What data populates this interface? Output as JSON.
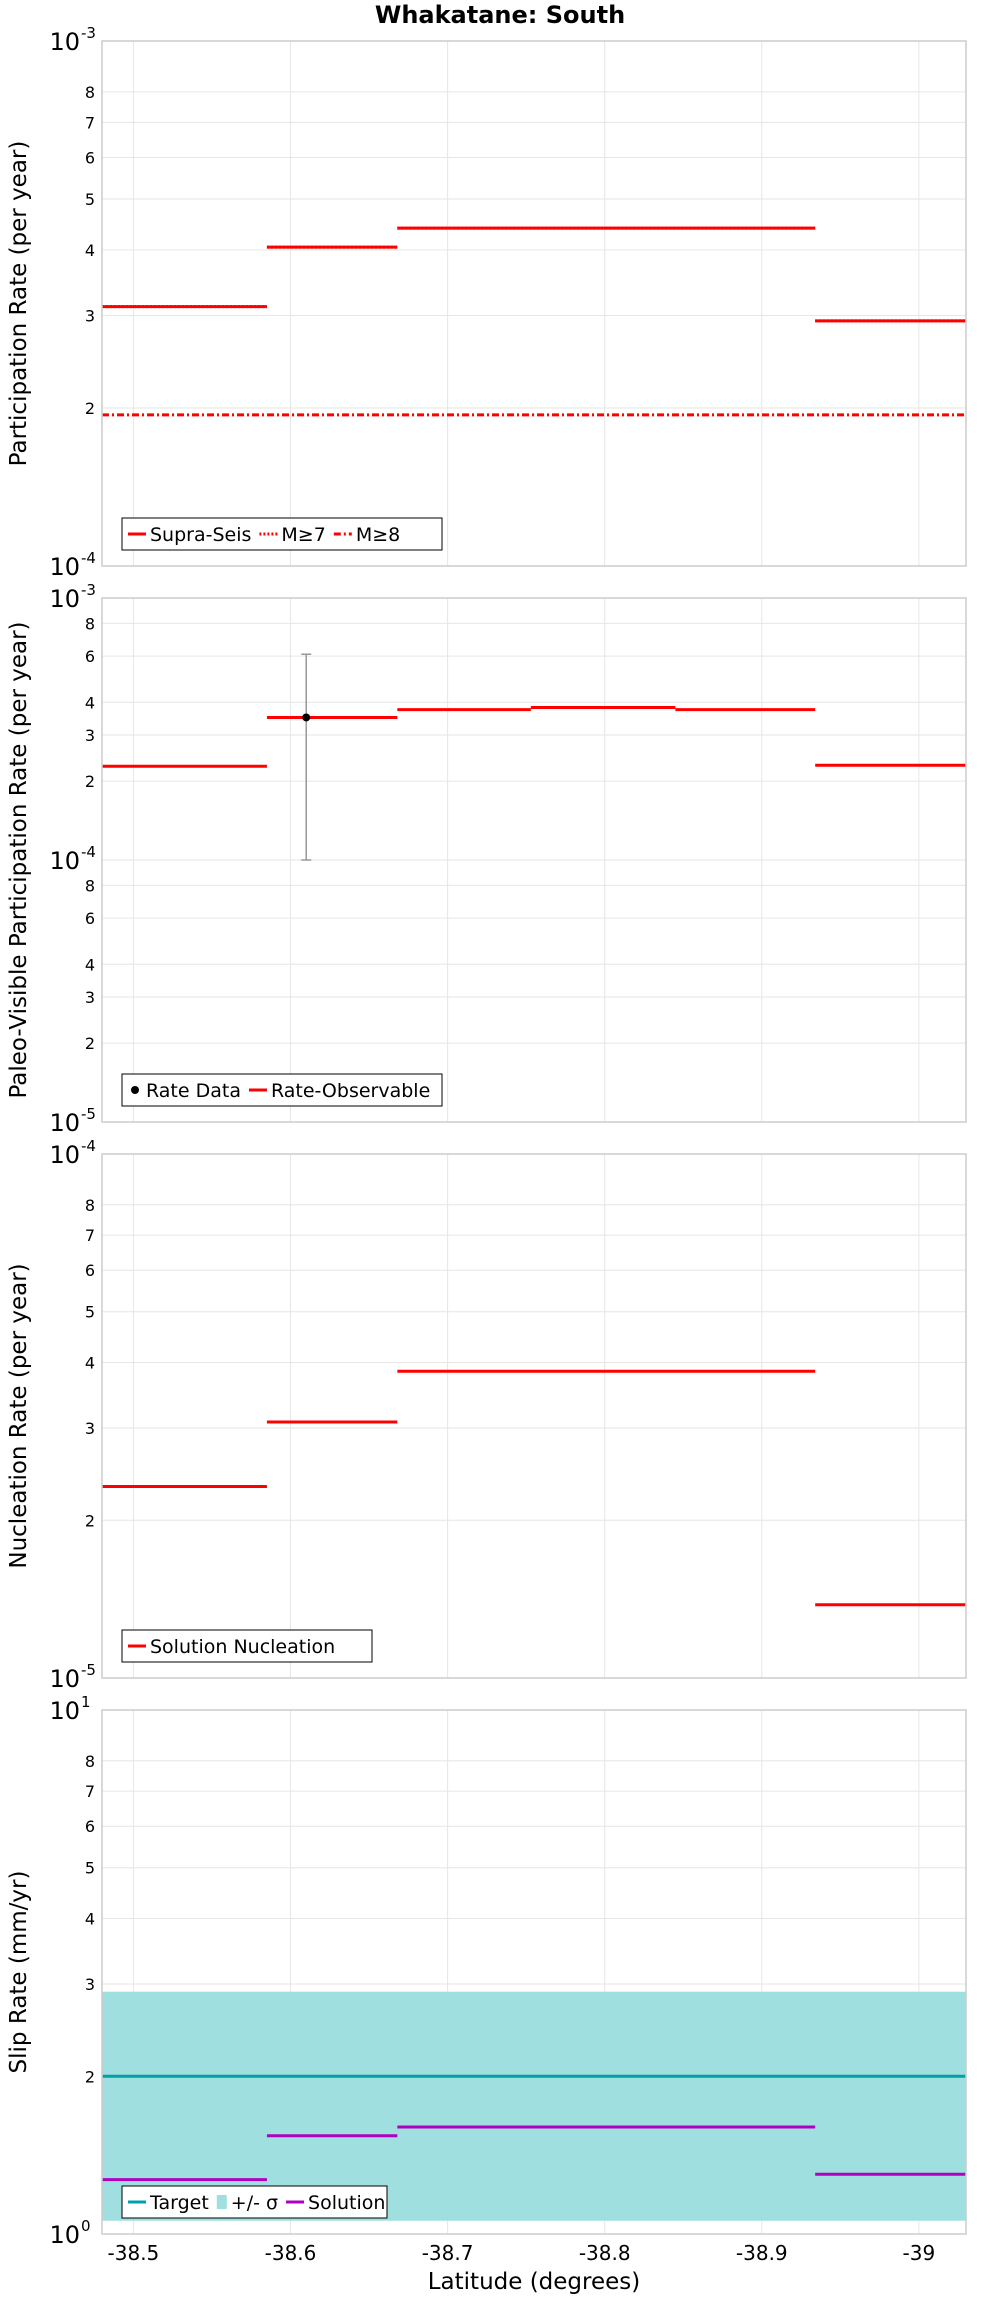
{
  "chart_data": {
    "title": "Whakatane: South",
    "xlabel": "Latitude (degrees)",
    "xlim": [
      -38.48,
      -39.03
    ],
    "xticks": [
      -38.5,
      -38.6,
      -38.7,
      -38.8,
      -38.9,
      -39
    ],
    "xtick_labels": [
      "-38.5",
      "-38.6",
      "-38.7",
      "-38.8",
      "-38.9",
      "-39"
    ],
    "panels": [
      {
        "type": "line",
        "ylabel": "Participation Rate (per year)",
        "ylim": [
          0.0001,
          0.001
        ],
        "yscale": "log",
        "major_ticks": [
          {
            "value": 0.001,
            "base": "10",
            "exp": "-3"
          },
          {
            "value": 0.0001,
            "base": "10",
            "exp": "-4"
          }
        ],
        "minor_ticks": [
          {
            "value": 0.0008,
            "label": "8"
          },
          {
            "value": 0.0007,
            "label": "7"
          },
          {
            "value": 0.0006,
            "label": "6"
          },
          {
            "value": 0.0005,
            "label": "5"
          },
          {
            "value": 0.0004,
            "label": "4"
          },
          {
            "value": 0.0003,
            "label": "3"
          },
          {
            "value": 0.0002,
            "label": "2"
          }
        ],
        "series": [
          {
            "name": "Supra-Seis",
            "style": "solid",
            "color": "#ff0000",
            "segments": [
              [
                -38.48,
                -38.585,
                0.000312
              ],
              [
                -38.585,
                -38.668,
                0.000405
              ],
              [
                -38.668,
                -38.934,
                0.00044
              ],
              [
                -38.934,
                -39.03,
                0.000293
              ]
            ]
          },
          {
            "name": "M≥7",
            "style": "dotted",
            "color": "#ff0000",
            "segments": [
              [
                -38.48,
                -38.585,
                0.000312
              ],
              [
                -38.585,
                -38.668,
                0.000405
              ],
              [
                -38.668,
                -38.934,
                0.00044
              ],
              [
                -38.934,
                -39.03,
                0.000293
              ]
            ]
          },
          {
            "name": "M≥8",
            "style": "dashdot",
            "color": "#ff0000",
            "segments": [
              [
                -38.48,
                -39.03,
                0.000194
              ]
            ]
          }
        ],
        "legend": [
          {
            "name": "Supra-Seis",
            "style": "solid",
            "color": "#ff0000"
          },
          {
            "name": "M≥7",
            "style": "dotted",
            "color": "#ff0000"
          },
          {
            "name": "M≥8",
            "style": "dashdot",
            "color": "#ff0000"
          }
        ]
      },
      {
        "type": "line",
        "ylabel": "Paleo-Visible Participation Rate (per year)",
        "ylim": [
          1e-05,
          0.001
        ],
        "yscale": "log",
        "major_ticks": [
          {
            "value": 0.001,
            "base": "10",
            "exp": "-3"
          },
          {
            "value": 0.0001,
            "base": "10",
            "exp": "-4"
          },
          {
            "value": 1e-05,
            "base": "10",
            "exp": "-5"
          }
        ],
        "minor_ticks": [
          {
            "value": 0.0008,
            "label": "8"
          },
          {
            "value": 0.0006,
            "label": "6"
          },
          {
            "value": 0.0004,
            "label": "4"
          },
          {
            "value": 0.0003,
            "label": "3"
          },
          {
            "value": 0.0002,
            "label": "2"
          },
          {
            "value": 8e-05,
            "label": "8"
          },
          {
            "value": 6e-05,
            "label": "6"
          },
          {
            "value": 4e-05,
            "label": "4"
          },
          {
            "value": 3e-05,
            "label": "3"
          },
          {
            "value": 2e-05,
            "label": "2"
          }
        ],
        "series": [
          {
            "name": "Rate-Observable",
            "style": "solid",
            "color": "#ff0000",
            "segments": [
              [
                -38.48,
                -38.585,
                0.000228
              ],
              [
                -38.585,
                -38.668,
                0.00035
              ],
              [
                -38.668,
                -38.753,
                0.000375
              ],
              [
                -38.753,
                -38.845,
                0.000382
              ],
              [
                -38.845,
                -38.934,
                0.000375
              ],
              [
                -38.934,
                -39.03,
                0.00023
              ]
            ]
          }
        ],
        "points": [
          {
            "name": "Rate Data",
            "x": -38.61,
            "y": 0.00035,
            "lower": 0.0001,
            "upper": 0.00061
          }
        ],
        "legend": [
          {
            "name": "Rate Data",
            "style": "point",
            "color": "#000000"
          },
          {
            "name": "Rate-Observable",
            "style": "solid",
            "color": "#ff0000"
          }
        ]
      },
      {
        "type": "line",
        "ylabel": "Nucleation Rate (per year)",
        "ylim": [
          1e-05,
          0.0001
        ],
        "yscale": "log",
        "major_ticks": [
          {
            "value": 0.0001,
            "base": "10",
            "exp": "-4"
          },
          {
            "value": 1e-05,
            "base": "10",
            "exp": "-5"
          }
        ],
        "minor_ticks": [
          {
            "value": 8e-05,
            "label": "8"
          },
          {
            "value": 7e-05,
            "label": "7"
          },
          {
            "value": 6e-05,
            "label": "6"
          },
          {
            "value": 5e-05,
            "label": "5"
          },
          {
            "value": 4e-05,
            "label": "4"
          },
          {
            "value": 3e-05,
            "label": "3"
          },
          {
            "value": 2e-05,
            "label": "2"
          }
        ],
        "series": [
          {
            "name": "Solution Nucleation",
            "style": "solid",
            "color": "#ff0000",
            "segments": [
              [
                -38.48,
                -38.585,
                2.32e-05
              ],
              [
                -38.585,
                -38.668,
                3.08e-05
              ],
              [
                -38.668,
                -38.934,
                3.85e-05
              ],
              [
                -38.934,
                -39.03,
                1.38e-05
              ]
            ]
          }
        ],
        "legend": [
          {
            "name": "Solution Nucleation",
            "style": "solid",
            "color": "#ff0000"
          }
        ]
      },
      {
        "type": "line",
        "ylabel": "Slip Rate (mm/yr)",
        "ylim": [
          1,
          10
        ],
        "yscale": "log",
        "major_ticks": [
          {
            "value": 10,
            "base": "10",
            "exp": "1"
          },
          {
            "value": 1,
            "base": "10",
            "exp": "0"
          }
        ],
        "minor_ticks": [
          {
            "value": 8,
            "label": "8"
          },
          {
            "value": 7,
            "label": "7"
          },
          {
            "value": 6,
            "label": "6"
          },
          {
            "value": 5,
            "label": "5"
          },
          {
            "value": 4,
            "label": "4"
          },
          {
            "value": 3,
            "label": "3"
          },
          {
            "value": 2,
            "label": "2"
          }
        ],
        "band": {
          "name": "+/- σ",
          "lower": 1.06,
          "upper": 2.9,
          "color": "#9fdfe0"
        },
        "series": [
          {
            "name": "Target",
            "style": "solid",
            "color": "#00a0a8",
            "segments": [
              [
                -38.48,
                -39.03,
                2.0
              ]
            ]
          },
          {
            "name": "Solution",
            "style": "solid",
            "color": "#b000c0",
            "segments": [
              [
                -38.48,
                -38.585,
                1.27
              ],
              [
                -38.585,
                -38.668,
                1.54
              ],
              [
                -38.668,
                -38.934,
                1.6
              ],
              [
                -38.934,
                -39.03,
                1.3
              ]
            ]
          }
        ],
        "legend": [
          {
            "name": "Target",
            "style": "solid",
            "color": "#00a0a8"
          },
          {
            "name": "+/- σ",
            "style": "box",
            "color": "#9fdfe0"
          },
          {
            "name": "Solution",
            "style": "solid",
            "color": "#b000c0"
          }
        ]
      }
    ]
  }
}
